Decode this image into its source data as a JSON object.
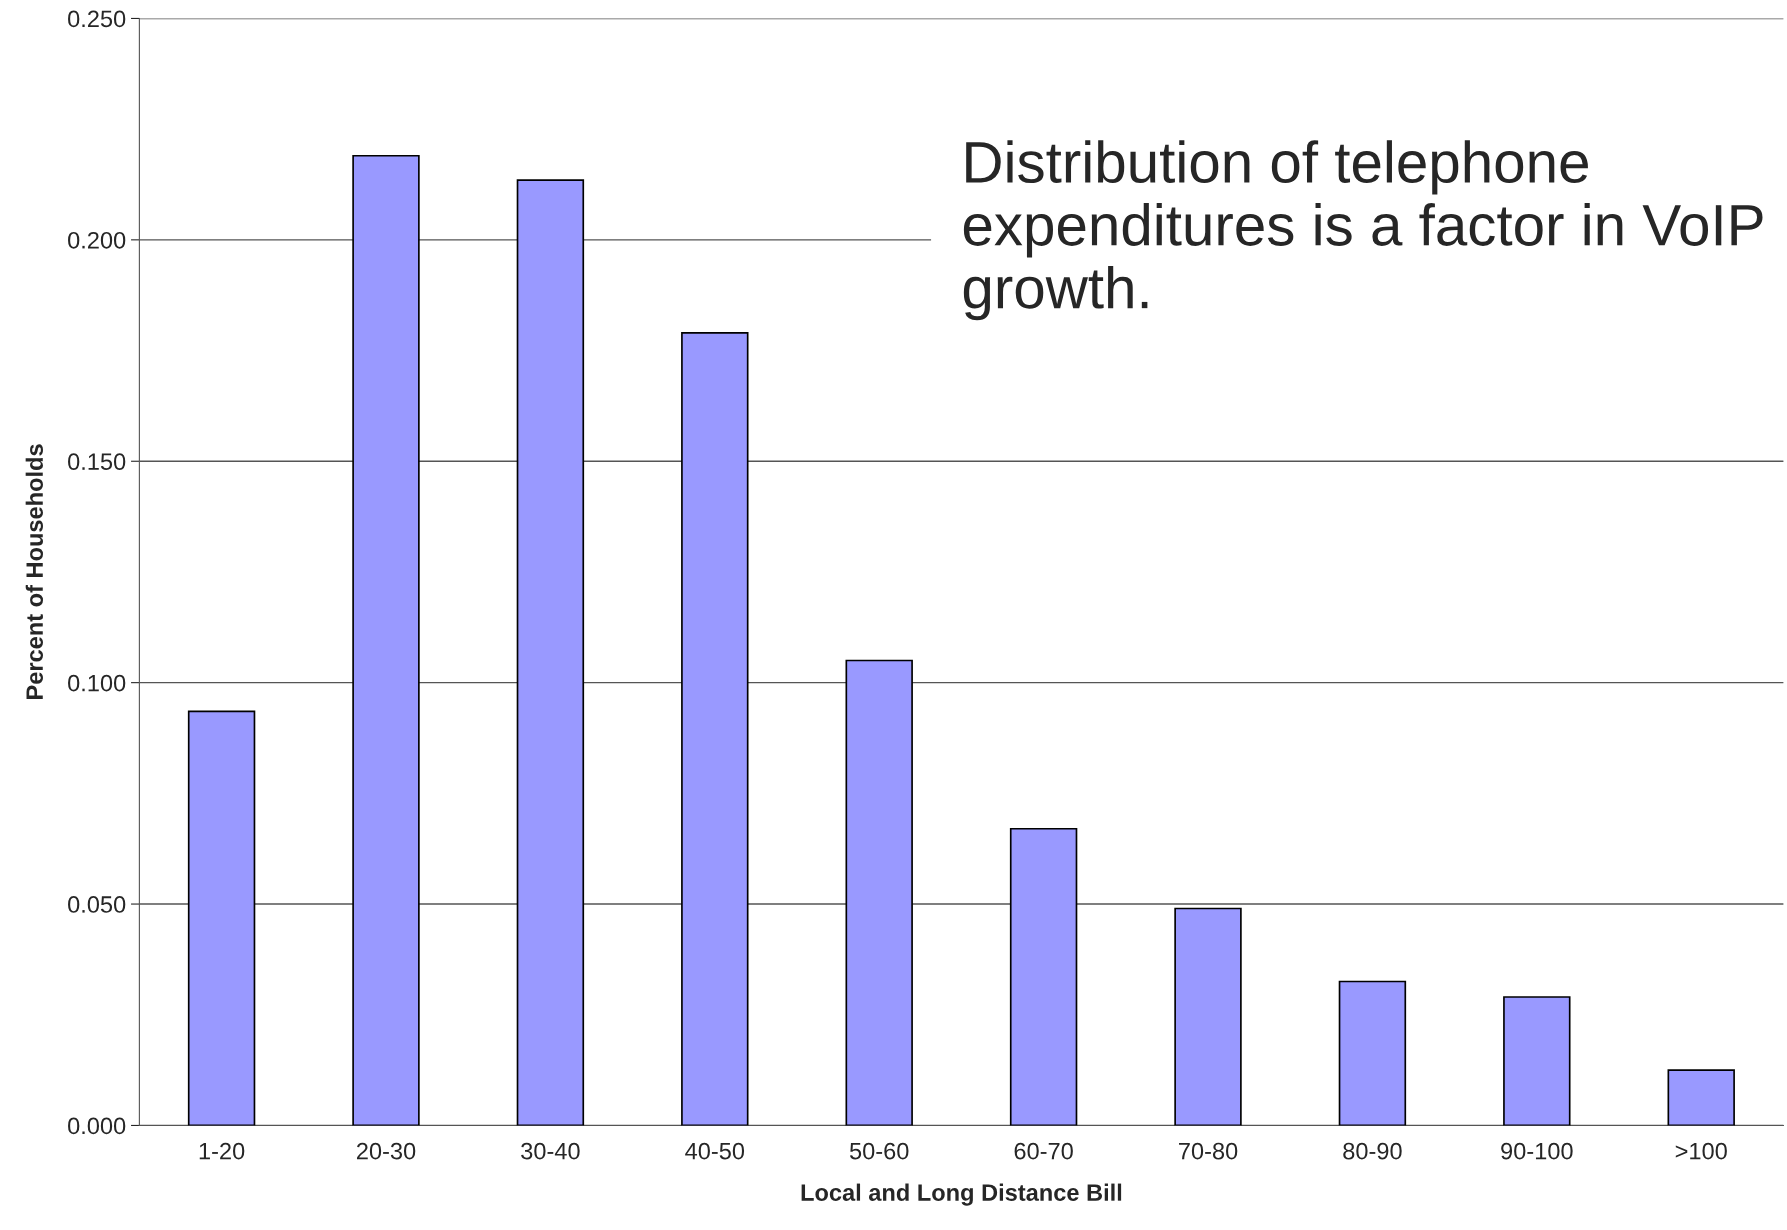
{
  "chart_data": {
    "type": "bar",
    "xlabel": "Local and Long Distance Bill",
    "ylabel": "Percent of Households",
    "categories": [
      "1-20",
      "20-30",
      "30-40",
      "40-50",
      "50-60",
      "60-70",
      "70-80",
      "80-90",
      "90-100",
      ">100"
    ],
    "values": [
      0.0935,
      0.219,
      0.2135,
      0.179,
      0.105,
      0.067,
      0.049,
      0.0325,
      0.029,
      0.0125
    ],
    "color": "#9999ff",
    "ylim": [
      0,
      0.25
    ],
    "yticks": [
      {
        "value": 0,
        "label": "0.000"
      },
      {
        "value": 0.05,
        "label": "0.050"
      },
      {
        "value": 0.1,
        "label": "0.100"
      },
      {
        "value": 0.15,
        "label": "0.150"
      },
      {
        "value": 0.2,
        "label": "0.200"
      },
      {
        "value": 0.25,
        "label": "0.250"
      }
    ],
    "grid": "y",
    "annotations": [
      "Distribution of telephone expenditures is a factor in VoIP growth."
    ]
  }
}
